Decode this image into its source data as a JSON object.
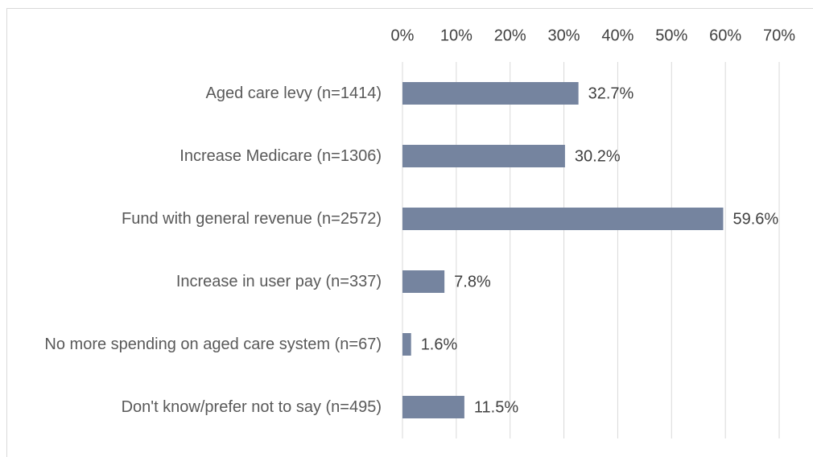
{
  "chart_data": {
    "type": "bar",
    "orientation": "horizontal",
    "categories": [
      "Aged care levy (n=1414)",
      "Increase Medicare (n=1306)",
      "Fund with general revenue (n=2572)",
      "Increase in user pay (n=337)",
      "No more spending on aged care system (n=67)",
      "Don't know/prefer not to say (n=495)"
    ],
    "values": [
      32.7,
      30.2,
      59.6,
      7.8,
      1.6,
      11.5
    ],
    "value_labels": [
      "32.7%",
      "30.2%",
      "59.6%",
      "7.8%",
      "1.6%",
      "11.5%"
    ],
    "color": "#75849f",
    "xlim": [
      0,
      70
    ],
    "xticks": [
      {
        "value": 0,
        "label": "0%"
      },
      {
        "value": 10,
        "label": "10%"
      },
      {
        "value": 20,
        "label": "20%"
      },
      {
        "value": 30,
        "label": "30%"
      },
      {
        "value": 40,
        "label": "40%"
      },
      {
        "value": 50,
        "label": "50%"
      },
      {
        "value": 60,
        "label": "60%"
      },
      {
        "value": 70,
        "label": "70%"
      }
    ],
    "grid": true
  }
}
